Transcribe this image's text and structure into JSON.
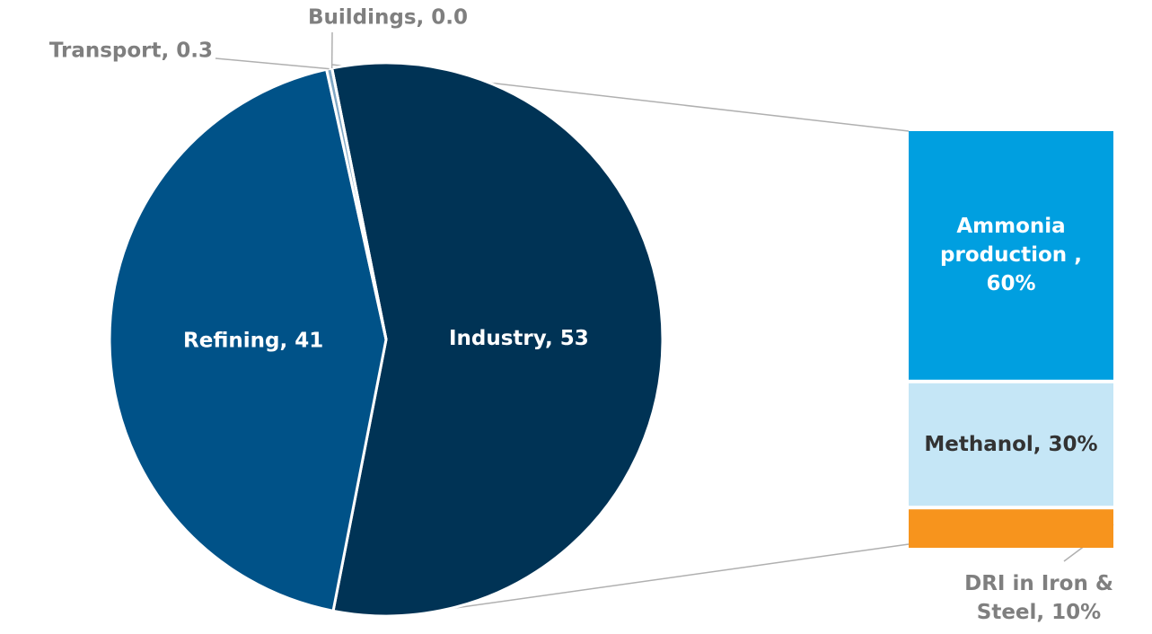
{
  "chart_data": [
    {
      "type": "pie",
      "values": [
        53,
        41,
        0.3,
        0.0
      ],
      "value_labels": [
        "Industry, 53",
        "Refining, 41",
        "Transport, 0.3",
        "Buildings, 0.0"
      ],
      "colors": [
        "#003355",
        "#005288",
        "#7fa6c4",
        "#b0c8dc"
      ]
    },
    {
      "type": "stacked_bar",
      "values": [
        60,
        30,
        10
      ],
      "value_labels": [
        "Ammonia production , 60%",
        "Methanol, 30%",
        "DRI in Iron & Steel, 10%"
      ],
      "colors": [
        "#009fe0",
        "#c5e6f6",
        "#f7941d"
      ]
    }
  ]
}
